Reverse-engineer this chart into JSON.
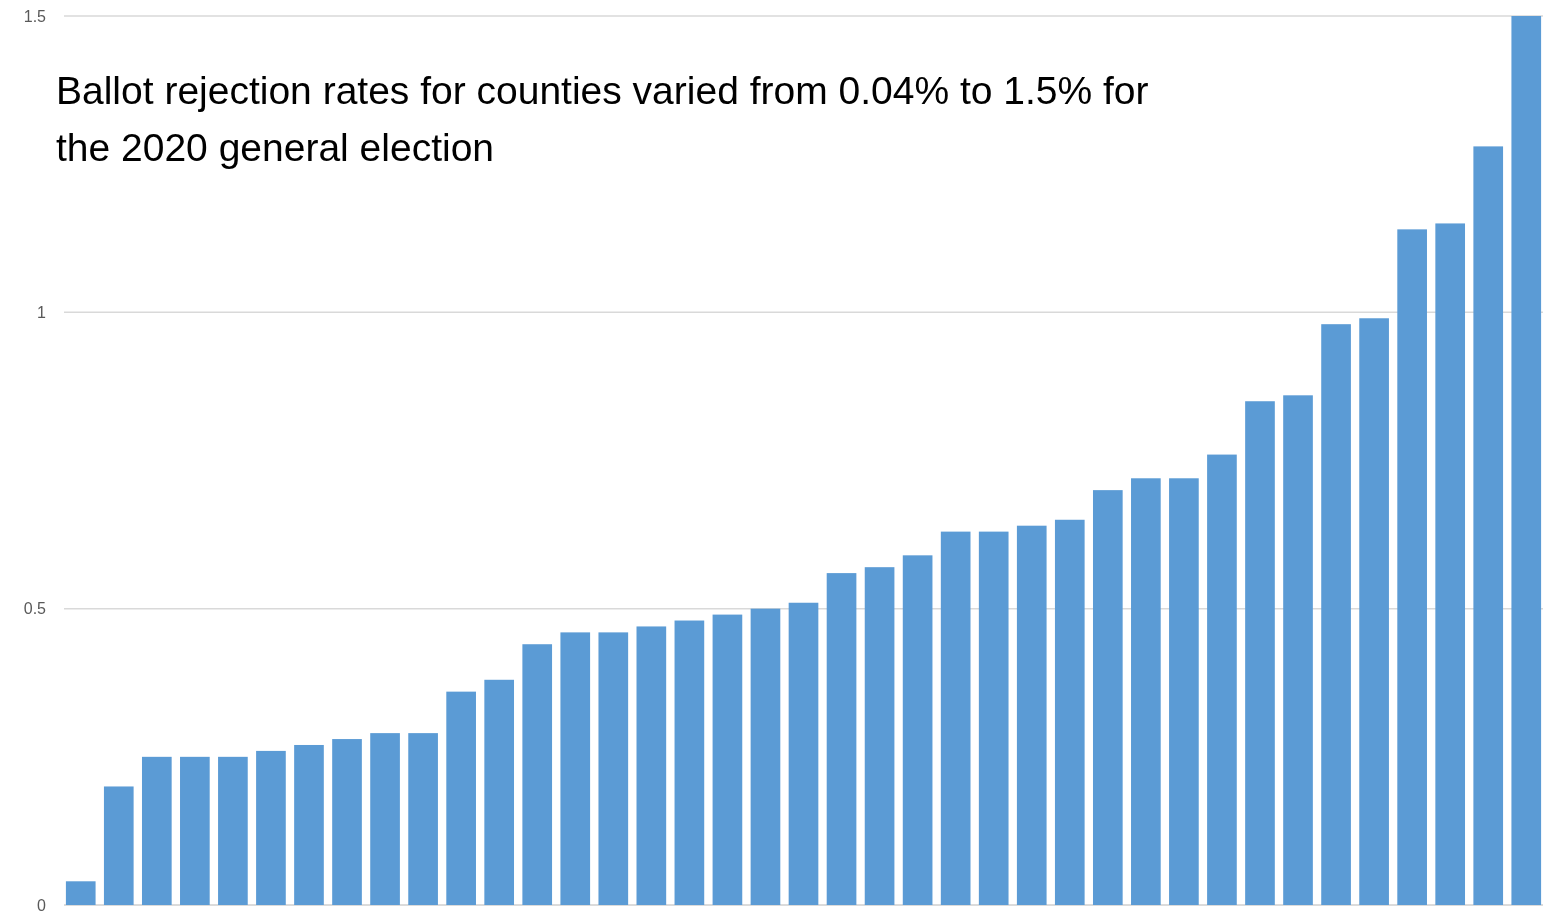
{
  "chart_data": {
    "type": "bar",
    "title": "Ballot rejection rates for counties varied from 0.04% to 1.5% for the 2020 general election",
    "categories": [
      null,
      null,
      null,
      null,
      null,
      null,
      null,
      null,
      null,
      null,
      null,
      null,
      null,
      null,
      null,
      null,
      null,
      null,
      null,
      null,
      null,
      null,
      null,
      null,
      null,
      null,
      null,
      null,
      null,
      null,
      null,
      null,
      null,
      null,
      null,
      null,
      null,
      null,
      null
    ],
    "values": [
      0.04,
      0.2,
      0.25,
      0.25,
      0.25,
      0.26,
      0.27,
      0.28,
      0.29,
      0.29,
      0.36,
      0.38,
      0.44,
      0.46,
      0.46,
      0.47,
      0.48,
      0.49,
      0.5,
      0.51,
      0.56,
      0.57,
      0.59,
      0.63,
      0.63,
      0.64,
      0.65,
      0.7,
      0.72,
      0.72,
      0.76,
      0.85,
      0.86,
      0.98,
      0.99,
      1.14,
      1.15,
      1.28,
      1.5
    ],
    "color": "#5b9bd5",
    "ylim": [
      0,
      1.5
    ],
    "yticks": [
      0,
      0.5,
      1,
      1.5
    ],
    "grid": "y"
  }
}
